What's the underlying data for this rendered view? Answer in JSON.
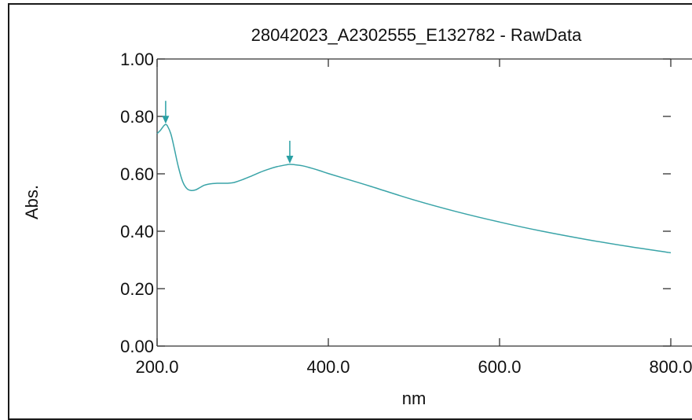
{
  "colors": {
    "series": "#3aa4a8",
    "axis": "#333333",
    "text": "#111111",
    "marker": "#2aa0a4"
  },
  "chart_data": {
    "type": "line",
    "title": "28042023_A2302555_E132782 - RawData",
    "xlabel": "nm",
    "ylabel": "Abs.",
    "xlim": [
      200.0,
      800.0
    ],
    "ylim": [
      0.0,
      1.0
    ],
    "x_ticks": [
      "200.0",
      "400.0",
      "600.0",
      "800.0"
    ],
    "y_ticks": [
      "0.00",
      "0.20",
      "0.40",
      "0.60",
      "0.80",
      "1.00"
    ],
    "grid": false,
    "series": [
      {
        "x": [
          200,
          204,
          208,
          210,
          212,
          216,
          220,
          225,
          230,
          235,
          240,
          245,
          250,
          255,
          260,
          265,
          270,
          275,
          280,
          285,
          290,
          300,
          310,
          320,
          330,
          340,
          350,
          355,
          360,
          370,
          380,
          390,
          400,
          420,
          450,
          500,
          550,
          600,
          650,
          700,
          750,
          800
        ],
        "y": [
          0.74,
          0.752,
          0.768,
          0.772,
          0.767,
          0.74,
          0.69,
          0.622,
          0.572,
          0.548,
          0.542,
          0.544,
          0.552,
          0.56,
          0.564,
          0.566,
          0.567,
          0.567,
          0.567,
          0.568,
          0.57,
          0.58,
          0.592,
          0.605,
          0.616,
          0.625,
          0.631,
          0.633,
          0.632,
          0.628,
          0.62,
          0.611,
          0.601,
          0.583,
          0.556,
          0.509,
          0.468,
          0.432,
          0.4,
          0.372,
          0.347,
          0.325
        ]
      }
    ],
    "peak_markers": [
      {
        "x": 210,
        "y": 0.772
      },
      {
        "x": 355,
        "y": 0.633
      }
    ]
  }
}
